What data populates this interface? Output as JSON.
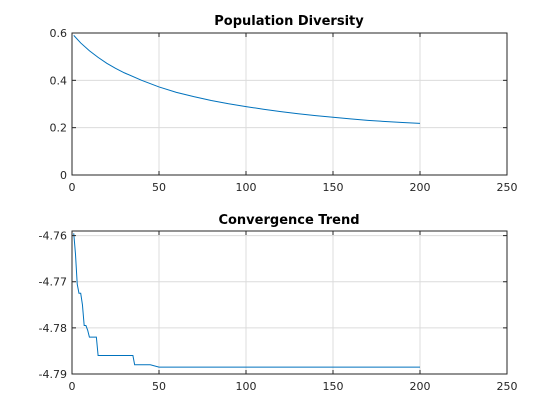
{
  "chart_data": [
    {
      "type": "line",
      "title": "Population Diversity",
      "xlabel": "",
      "ylabel": "",
      "xlim": [
        0,
        250
      ],
      "ylim": [
        0,
        0.6
      ],
      "xticks": [
        0,
        50,
        100,
        150,
        200,
        250
      ],
      "yticks": [
        0,
        0.2,
        0.4,
        0.6
      ],
      "xtick_labels": [
        "0",
        "50",
        "100",
        "150",
        "200",
        "250"
      ],
      "ytick_labels": [
        "0",
        "0.2",
        "0.4",
        "0.6"
      ],
      "grid": true,
      "series": [
        {
          "color": "#0072BD",
          "x": [
            1,
            5,
            10,
            15,
            20,
            25,
            30,
            40,
            50,
            60,
            70,
            80,
            90,
            100,
            110,
            120,
            130,
            140,
            150,
            160,
            170,
            180,
            190,
            200
          ],
          "y": [
            0.59,
            0.558,
            0.525,
            0.497,
            0.472,
            0.451,
            0.432,
            0.4,
            0.372,
            0.349,
            0.331,
            0.315,
            0.301,
            0.289,
            0.278,
            0.268,
            0.259,
            0.251,
            0.244,
            0.237,
            0.231,
            0.226,
            0.222,
            0.218
          ]
        }
      ]
    },
    {
      "type": "line",
      "title": "Convergence Trend",
      "xlabel": "",
      "ylabel": "",
      "xlim": [
        0,
        250
      ],
      "ylim": [
        -4.79,
        -4.759
      ],
      "xticks": [
        0,
        50,
        100,
        150,
        200,
        250
      ],
      "yticks": [
        -4.79,
        -4.78,
        -4.77,
        -4.76
      ],
      "xtick_labels": [
        "0",
        "50",
        "100",
        "150",
        "200",
        "250"
      ],
      "ytick_labels": [
        "-4.79",
        "-4.78",
        "-4.77",
        "-4.76"
      ],
      "grid": true,
      "series": [
        {
          "color": "#0072BD",
          "x": [
            1,
            2,
            3,
            4,
            5,
            6,
            7,
            8,
            9,
            10,
            11,
            12,
            13,
            14,
            15,
            16,
            17,
            18,
            19,
            20,
            25,
            30,
            35,
            36,
            40,
            45,
            50,
            60,
            80,
            100,
            120,
            150,
            200
          ],
          "y": [
            -4.7595,
            -4.764,
            -4.7705,
            -4.7725,
            -4.7725,
            -4.775,
            -4.7795,
            -4.7795,
            -4.7805,
            -4.782,
            -4.782,
            -4.782,
            -4.782,
            -4.782,
            -4.786,
            -4.786,
            -4.786,
            -4.786,
            -4.786,
            -4.786,
            -4.786,
            -4.786,
            -4.786,
            -4.788,
            -4.788,
            -4.788,
            -4.7885,
            -4.7885,
            -4.7885,
            -4.7885,
            -4.7885,
            -4.7885,
            -4.7885
          ]
        }
      ]
    }
  ]
}
